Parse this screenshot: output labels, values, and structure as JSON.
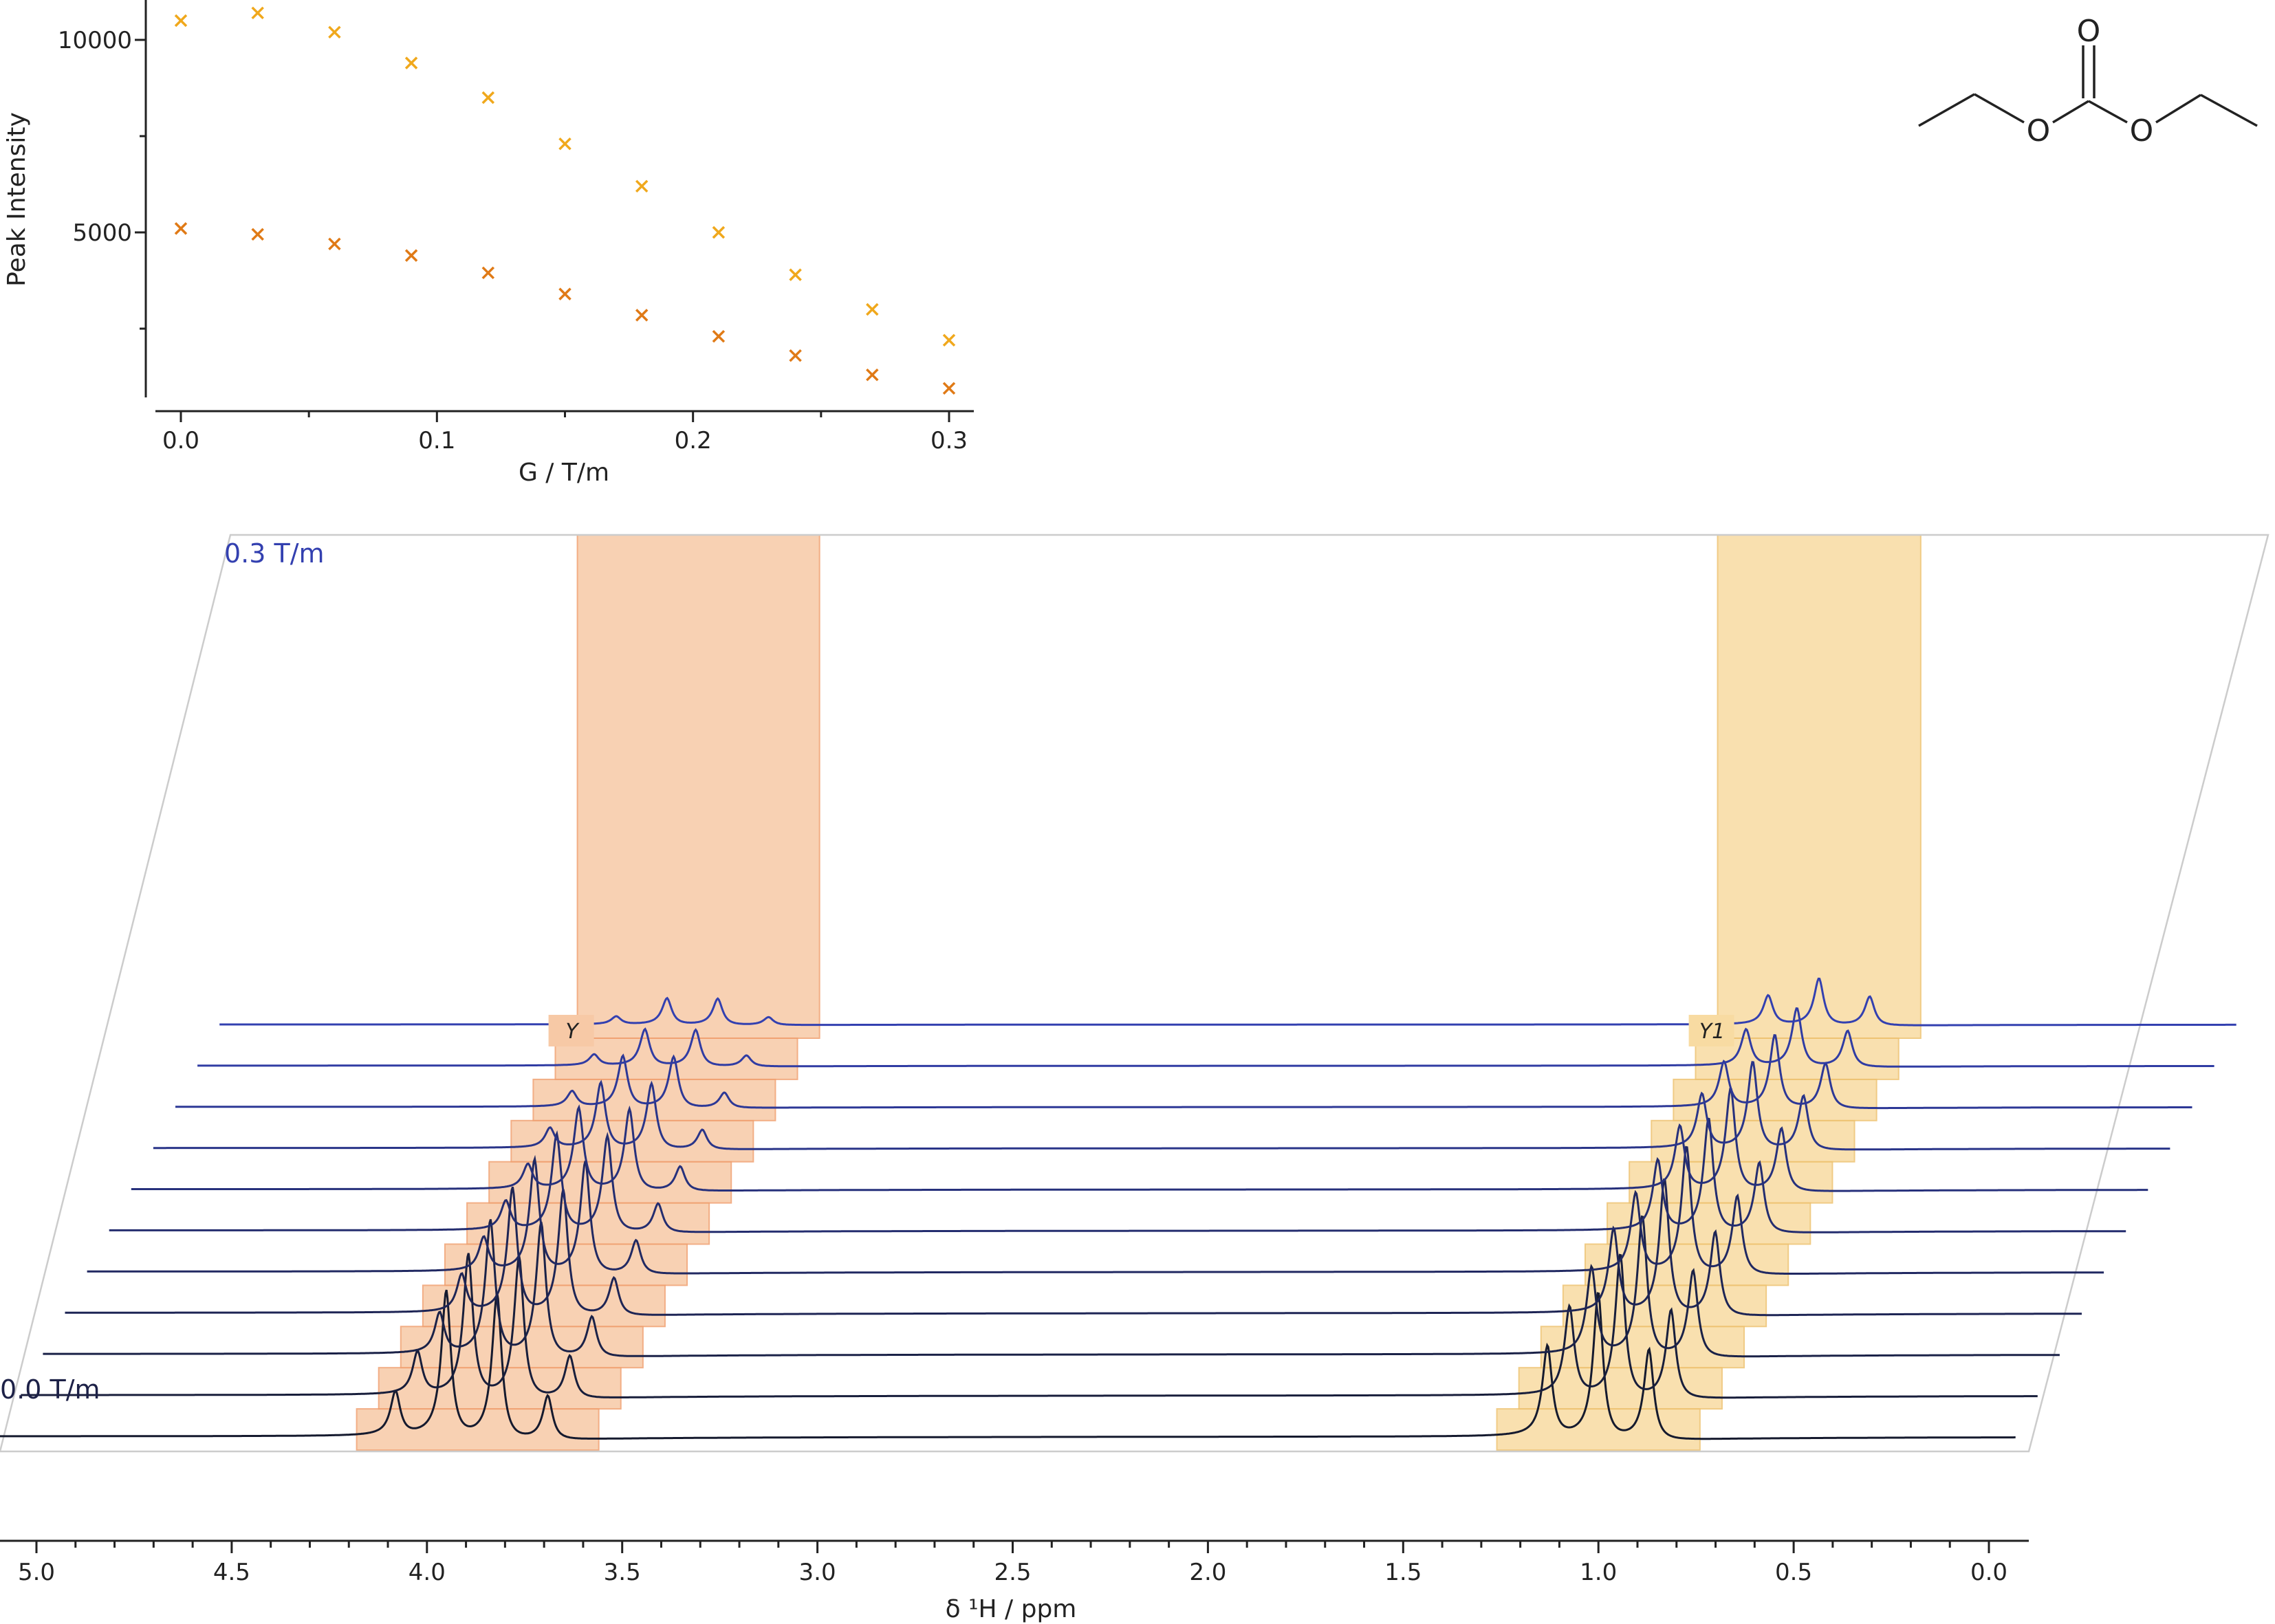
{
  "colors": {
    "series_a": "#f0a81c",
    "series_b": "#e07a16",
    "band_Y": "#f7c9a6",
    "band_Y_edge": "#f0a070",
    "band_Y1": "#f8dba2",
    "band_Y1_edge": "#eec270",
    "trace_first": "#151a2e",
    "trace_last": "#3340b0",
    "axis": "#222222",
    "frame": "#cccccc"
  },
  "chart_data": [
    {
      "type": "scatter",
      "xlabel": "G / T/m",
      "ylabel": "Peak Intensity",
      "xlim": [
        -0.01,
        0.31
      ],
      "ylim": [
        300,
        11000
      ],
      "x_ticks": [
        "0.0",
        "0.1",
        "0.2",
        "0.3"
      ],
      "y_ticks": [
        "5000",
        "10000"
      ],
      "marker": "x",
      "series": [
        {
          "color": "#f0a81c",
          "x": [
            0.0,
            0.03,
            0.06,
            0.09,
            0.12,
            0.15,
            0.18,
            0.21,
            0.24,
            0.27,
            0.3
          ],
          "y": [
            10500,
            10700,
            10200,
            9400,
            8500,
            7300,
            6200,
            5000,
            3900,
            3000,
            2200
          ]
        },
        {
          "color": "#e07a16",
          "x": [
            0.0,
            0.03,
            0.06,
            0.09,
            0.12,
            0.15,
            0.18,
            0.21,
            0.24,
            0.27,
            0.3
          ],
          "y": [
            5100,
            4950,
            4700,
            4400,
            3950,
            3400,
            2850,
            2300,
            1800,
            1300,
            950
          ]
        }
      ]
    },
    {
      "type": "line",
      "xlabel": "δ ¹H / ppm",
      "xlim": [
        5.1,
        0.0
      ],
      "x_ticks": [
        "5.0",
        "4.5",
        "4.0",
        "3.5",
        "3.0",
        "2.5",
        "2.0",
        "1.5",
        "1.0",
        "0.5",
        "0.0"
      ],
      "gradients_T_per_m": [
        0.0,
        0.03,
        0.06,
        0.09,
        0.12,
        0.15,
        0.18,
        0.21,
        0.24,
        0.27,
        0.3
      ],
      "first_label": "0.0 T/m",
      "last_label": "0.3 T/m",
      "bands": [
        {
          "label": "Y",
          "ppm_range": [
            4.18,
            3.56
          ]
        },
        {
          "label": "Y1",
          "ppm_range": [
            1.26,
            0.74
          ]
        }
      ],
      "multiplets": [
        {
          "name": "quartet",
          "ppm": [
            4.08,
            3.95,
            3.82,
            3.69
          ],
          "relative": [
            0.3,
            1.0,
            1.0,
            0.3
          ]
        },
        {
          "name": "triplet",
          "ppm": [
            1.13,
            1.0,
            0.87
          ],
          "relative": [
            0.62,
            1.0,
            0.62
          ]
        }
      ],
      "peak_heights": {
        "quartet": [
          1.0,
          0.97,
          0.92,
          0.86,
          0.77,
          0.66,
          0.56,
          0.45,
          0.35,
          0.25,
          0.18
        ],
        "triplet": [
          1.0,
          0.98,
          0.96,
          0.93,
          0.87,
          0.78,
          0.7,
          0.6,
          0.5,
          0.4,
          0.32
        ]
      }
    }
  ],
  "molecule": {
    "atoms": [
      "O",
      "O",
      "O"
    ]
  }
}
